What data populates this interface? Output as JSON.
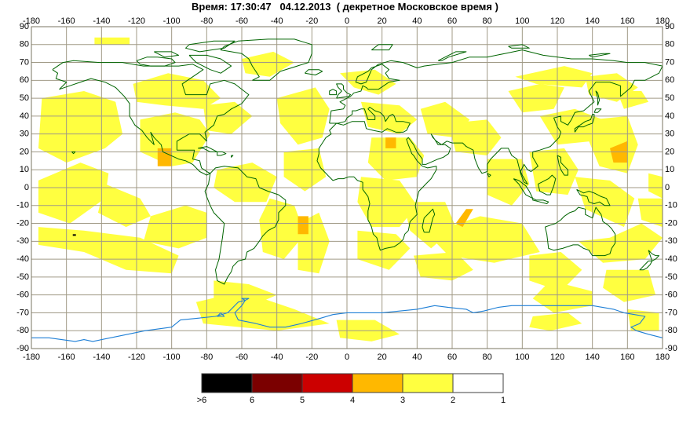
{
  "title": {
    "text": "Время: 17:30:47   04.12.2013  ( декретное Московское время )"
  },
  "map": {
    "projection": "equirectangular",
    "background": "#ffffff",
    "grid_color": "#a09a86",
    "coast_color": "#006400",
    "antarctic_coast_color": "#1e7fd6",
    "x_axis": {
      "min": -180,
      "max": 180,
      "step": 20,
      "labels": [
        "-180",
        "-160",
        "-140",
        "-120",
        "-100",
        "-80",
        "-60",
        "-40",
        "-20",
        "0",
        "20",
        "40",
        "60",
        "80",
        "100",
        "120",
        "140",
        "160",
        "180"
      ]
    },
    "y_axis": {
      "min": -90,
      "max": 90,
      "step": 10,
      "labels": [
        "90",
        "80",
        "70",
        "60",
        "50",
        "40",
        "30",
        "20",
        "10",
        "0",
        "-10",
        "-20",
        "-30",
        "-40",
        "-50",
        "-60",
        "-70",
        "-80",
        "-90"
      ]
    },
    "regions": [
      {
        "level": 2,
        "points": [
          [
            -174,
            50
          ],
          [
            -150,
            54
          ],
          [
            -132,
            48
          ],
          [
            -128,
            30
          ],
          [
            -138,
            22
          ],
          [
            -160,
            14
          ],
          [
            -176,
            22
          ]
        ]
      },
      {
        "level": 2,
        "points": [
          [
            -176,
            4
          ],
          [
            -152,
            14
          ],
          [
            -136,
            8
          ],
          [
            -138,
            -6
          ],
          [
            -158,
            -20
          ],
          [
            -176,
            -14
          ]
        ]
      },
      {
        "level": 2,
        "points": [
          [
            -138,
            2
          ],
          [
            -118,
            -6
          ],
          [
            -112,
            -16
          ],
          [
            -126,
            -22
          ],
          [
            -142,
            -14
          ]
        ]
      },
      {
        "level": 2,
        "points": [
          [
            -176,
            -22
          ],
          [
            -150,
            -24
          ],
          [
            -118,
            -28
          ],
          [
            -96,
            -38
          ],
          [
            -100,
            -48
          ],
          [
            -126,
            -46
          ],
          [
            -150,
            -36
          ],
          [
            -176,
            -32
          ]
        ]
      },
      {
        "level": 2,
        "points": [
          [
            -112,
            -16
          ],
          [
            -92,
            -10
          ],
          [
            -80,
            -14
          ],
          [
            -80,
            -28
          ],
          [
            -96,
            -34
          ],
          [
            -116,
            -30
          ]
        ]
      },
      {
        "level": 2,
        "points": [
          [
            -118,
            38
          ],
          [
            -98,
            42
          ],
          [
            -84,
            38
          ],
          [
            -78,
            30
          ],
          [
            -88,
            14
          ],
          [
            -100,
            12
          ],
          [
            -118,
            20
          ]
        ]
      },
      {
        "level": 2,
        "points": [
          [
            -122,
            58
          ],
          [
            -102,
            64
          ],
          [
            -82,
            60
          ],
          [
            -72,
            50
          ],
          [
            -82,
            44
          ],
          [
            -104,
            46
          ],
          [
            -120,
            48
          ]
        ]
      },
      {
        "level": 2,
        "points": [
          [
            -82,
            46
          ],
          [
            -64,
            48
          ],
          [
            -54,
            40
          ],
          [
            -66,
            30
          ],
          [
            -80,
            32
          ]
        ]
      },
      {
        "level": 2,
        "points": [
          [
            -60,
            72
          ],
          [
            -42,
            76
          ],
          [
            -30,
            70
          ],
          [
            -44,
            62
          ],
          [
            -58,
            64
          ]
        ]
      },
      {
        "level": 2,
        "points": [
          [
            -144,
            84
          ],
          [
            -124,
            84
          ],
          [
            -124,
            80
          ],
          [
            -144,
            80
          ]
        ]
      },
      {
        "level": 2,
        "points": [
          [
            -40,
            50
          ],
          [
            -18,
            56
          ],
          [
            -10,
            44
          ],
          [
            -14,
            28
          ],
          [
            -28,
            24
          ],
          [
            -38,
            36
          ]
        ]
      },
      {
        "level": 2,
        "points": [
          [
            -36,
            20
          ],
          [
            -16,
            22
          ],
          [
            -12,
            6
          ],
          [
            -24,
            -2
          ],
          [
            -36,
            6
          ]
        ]
      },
      {
        "level": 2,
        "points": [
          [
            -74,
            10
          ],
          [
            -54,
            14
          ],
          [
            -40,
            6
          ],
          [
            -46,
            -8
          ],
          [
            -64,
            -8
          ],
          [
            -76,
            0
          ]
        ]
      },
      {
        "level": 2,
        "points": [
          [
            -44,
            -6
          ],
          [
            -30,
            -10
          ],
          [
            -24,
            -26
          ],
          [
            -36,
            -40
          ],
          [
            -48,
            -36
          ],
          [
            -50,
            -18
          ]
        ]
      },
      {
        "level": 2,
        "points": [
          [
            -28,
            -20
          ],
          [
            -16,
            -14
          ],
          [
            -10,
            -30
          ],
          [
            -16,
            -48
          ],
          [
            -28,
            -46
          ]
        ]
      },
      {
        "level": 2,
        "points": [
          [
            -76,
            -52
          ],
          [
            -56,
            -54
          ],
          [
            -40,
            -60
          ],
          [
            -54,
            -66
          ],
          [
            -76,
            -62
          ]
        ]
      },
      {
        "level": 2,
        "points": [
          [
            -86,
            -64
          ],
          [
            -60,
            -58
          ],
          [
            -30,
            -68
          ],
          [
            -10,
            -76
          ],
          [
            -40,
            -80
          ],
          [
            -82,
            -76
          ]
        ]
      },
      {
        "level": 2,
        "points": [
          [
            -6,
            -74
          ],
          [
            16,
            -74
          ],
          [
            30,
            -82
          ],
          [
            14,
            -86
          ],
          [
            -4,
            -84
          ]
        ]
      },
      {
        "level": 2,
        "points": [
          [
            -4,
            64
          ],
          [
            16,
            66
          ],
          [
            28,
            58
          ],
          [
            18,
            52
          ],
          [
            4,
            56
          ]
        ]
      },
      {
        "level": 2,
        "points": [
          [
            8,
            48
          ],
          [
            30,
            46
          ],
          [
            40,
            38
          ],
          [
            30,
            30
          ],
          [
            12,
            34
          ]
        ]
      },
      {
        "level": 2,
        "points": [
          [
            14,
            28
          ],
          [
            36,
            28
          ],
          [
            44,
            18
          ],
          [
            40,
            6
          ],
          [
            22,
            4
          ],
          [
            12,
            14
          ]
        ]
      },
      {
        "level": 2,
        "points": [
          [
            8,
            6
          ],
          [
            30,
            4
          ],
          [
            40,
            -10
          ],
          [
            30,
            -22
          ],
          [
            14,
            -22
          ],
          [
            6,
            -8
          ]
        ]
      },
      {
        "level": 2,
        "points": [
          [
            32,
            -8
          ],
          [
            56,
            -8
          ],
          [
            62,
            -22
          ],
          [
            48,
            -34
          ],
          [
            36,
            -24
          ]
        ]
      },
      {
        "level": 2,
        "points": [
          [
            6,
            -24
          ],
          [
            28,
            -26
          ],
          [
            36,
            -34
          ],
          [
            24,
            -46
          ],
          [
            6,
            -40
          ]
        ]
      },
      {
        "level": 2,
        "points": [
          [
            38,
            -38
          ],
          [
            62,
            -36
          ],
          [
            72,
            -46
          ],
          [
            60,
            -52
          ],
          [
            42,
            -50
          ]
        ]
      },
      {
        "level": 2,
        "points": [
          [
            46,
            -26
          ],
          [
            76,
            -16
          ],
          [
            100,
            -20
          ],
          [
            110,
            -36
          ],
          [
            84,
            -42
          ],
          [
            58,
            -38
          ]
        ]
      },
      {
        "level": 2,
        "points": [
          [
            42,
            44
          ],
          [
            56,
            48
          ],
          [
            70,
            38
          ],
          [
            62,
            28
          ],
          [
            46,
            30
          ]
        ]
      },
      {
        "level": 2,
        "points": [
          [
            58,
            36
          ],
          [
            80,
            38
          ],
          [
            88,
            28
          ],
          [
            80,
            18
          ],
          [
            62,
            20
          ]
        ]
      },
      {
        "level": 2,
        "points": [
          [
            80,
            16
          ],
          [
            100,
            16
          ],
          [
            104,
            2
          ],
          [
            94,
            -10
          ],
          [
            80,
            -4
          ]
        ]
      },
      {
        "level": 2,
        "points": [
          [
            92,
            54
          ],
          [
            110,
            58
          ],
          [
            124,
            56
          ],
          [
            118,
            44
          ],
          [
            100,
            42
          ]
        ]
      },
      {
        "level": 2,
        "points": [
          [
            96,
            62
          ],
          [
            124,
            68
          ],
          [
            140,
            64
          ],
          [
            134,
            56
          ],
          [
            108,
            58
          ]
        ]
      },
      {
        "level": 2,
        "points": [
          [
            136,
            62
          ],
          [
            154,
            64
          ],
          [
            166,
            56
          ],
          [
            154,
            48
          ],
          [
            138,
            52
          ]
        ]
      },
      {
        "level": 2,
        "points": [
          [
            154,
            54
          ],
          [
            168,
            54
          ],
          [
            172,
            48
          ],
          [
            158,
            44
          ]
        ]
      },
      {
        "level": 2,
        "points": [
          [
            110,
            40
          ],
          [
            130,
            44
          ],
          [
            146,
            38
          ],
          [
            140,
            26
          ],
          [
            120,
            24
          ]
        ]
      },
      {
        "level": 2,
        "points": [
          [
            140,
            38
          ],
          [
            160,
            40
          ],
          [
            166,
            24
          ],
          [
            160,
            8
          ],
          [
            144,
            12
          ],
          [
            138,
            26
          ]
        ]
      },
      {
        "level": 2,
        "points": [
          [
            104,
            20
          ],
          [
            124,
            22
          ],
          [
            132,
            10
          ],
          [
            126,
            -4
          ],
          [
            108,
            -2
          ]
        ]
      },
      {
        "level": 2,
        "points": [
          [
            130,
            6
          ],
          [
            150,
            4
          ],
          [
            164,
            -6
          ],
          [
            158,
            -22
          ],
          [
            136,
            -12
          ]
        ]
      },
      {
        "level": 2,
        "points": [
          [
            132,
            -30
          ],
          [
            150,
            -28
          ],
          [
            168,
            -20
          ],
          [
            180,
            -28
          ],
          [
            170,
            -40
          ],
          [
            146,
            -42
          ]
        ]
      },
      {
        "level": 2,
        "points": [
          [
            104,
            -38
          ],
          [
            122,
            -36
          ],
          [
            134,
            -46
          ],
          [
            122,
            -58
          ],
          [
            104,
            -52
          ]
        ]
      },
      {
        "level": 2,
        "points": [
          [
            116,
            -52
          ],
          [
            140,
            -58
          ],
          [
            140,
            -66
          ],
          [
            118,
            -70
          ],
          [
            106,
            -62
          ]
        ]
      },
      {
        "level": 2,
        "points": [
          [
            148,
            -46
          ],
          [
            172,
            -46
          ],
          [
            176,
            -60
          ],
          [
            158,
            -64
          ],
          [
            146,
            -56
          ]
        ]
      },
      {
        "level": 2,
        "points": [
          [
            166,
            -6
          ],
          [
            180,
            -6
          ],
          [
            180,
            -22
          ],
          [
            168,
            -18
          ]
        ]
      },
      {
        "level": 2,
        "points": [
          [
            106,
            -72
          ],
          [
            126,
            -70
          ],
          [
            134,
            -76
          ],
          [
            116,
            -80
          ],
          [
            104,
            -78
          ]
        ]
      },
      {
        "level": 2,
        "points": [
          [
            160,
            -68
          ],
          [
            178,
            -70
          ],
          [
            178,
            -80
          ],
          [
            162,
            -80
          ]
        ]
      },
      {
        "level": 2,
        "points": [
          [
            172,
            8
          ],
          [
            180,
            6
          ],
          [
            180,
            -6
          ],
          [
            172,
            -2
          ]
        ]
      },
      {
        "level": 3,
        "points": [
          [
            -108,
            22
          ],
          [
            -100,
            22
          ],
          [
            -100,
            12
          ],
          [
            -108,
            12
          ]
        ]
      },
      {
        "level": 3,
        "points": [
          [
            -28,
            -16
          ],
          [
            -22,
            -16
          ],
          [
            -22,
            -26
          ],
          [
            -28,
            -26
          ]
        ]
      },
      {
        "level": 3,
        "points": [
          [
            68,
            -12
          ],
          [
            72,
            -12
          ],
          [
            66,
            -22
          ],
          [
            62,
            -20
          ]
        ]
      },
      {
        "level": 3,
        "points": [
          [
            150,
            22
          ],
          [
            160,
            26
          ],
          [
            160,
            14
          ],
          [
            152,
            14
          ]
        ]
      },
      {
        "level": 3,
        "points": [
          [
            22,
            28
          ],
          [
            28,
            28
          ],
          [
            28,
            22
          ],
          [
            22,
            22
          ]
        ]
      }
    ],
    "dark_marks": [
      {
        "level": 6,
        "lon": -155.5,
        "lat": -26.5
      }
    ]
  },
  "legend": {
    "colors": [
      "#000000",
      "#7b0000",
      "#cc0000",
      "#ffb800",
      "#ffff40",
      "#ffffff"
    ],
    "labels": [
      ">6",
      "6",
      "5",
      "4",
      "3",
      "2",
      "1"
    ]
  }
}
